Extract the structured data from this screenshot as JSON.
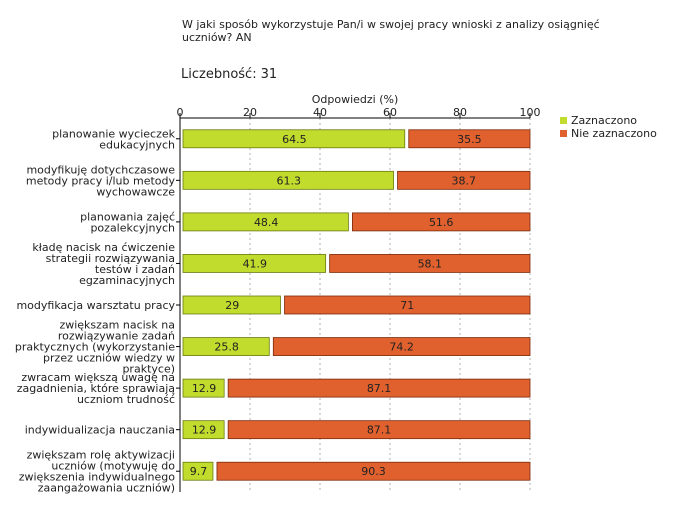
{
  "question": "W jaki sposób wykorzystuje Pan/i w swojej pracy wnioski z analizy osiągnięć uczniów? AN",
  "count_label": "Liczebność:",
  "count_value": "31",
  "colors": {
    "selected": "#c2dc2e",
    "not_selected": "#e0602e",
    "grid": "#b0b0b0",
    "axis": "#000000"
  },
  "chart_data": {
    "type": "bar",
    "orientation": "horizontal",
    "stacked": true,
    "title": "W jaki sposób wykorzystuje Pan/i w swojej pracy wnioski z analizy osiągnięć uczniów? AN",
    "xlabel": "Odpowiedzi (%)",
    "ylabel": "",
    "xlim": [
      0,
      100
    ],
    "ticks": [
      0,
      20,
      40,
      60,
      80,
      100
    ],
    "legend_position": "top-right",
    "categories": [
      [
        "planowanie wycieczek",
        "edukacyjnych"
      ],
      [
        "modyfikuję dotychczasowe",
        "metody pracy i/lub metody",
        "wychowawcze"
      ],
      [
        "planowania zajęć",
        "pozalekcyjnych"
      ],
      [
        "kładę nacisk na ćwiczenie",
        "strategii rozwiązywania",
        "testów i zadań",
        "egzaminacyjnych"
      ],
      [
        "modyfikacja warsztatu pracy"
      ],
      [
        "zwiększam nacisk na",
        "rozwiązywanie zadań",
        "praktycznych (wykorzystanie",
        "przez uczniów wiedzy w",
        "praktyce)"
      ],
      [
        "zwracam większą uwagę na",
        "zagadnienia, które sprawiają",
        "uczniom trudność"
      ],
      [
        "indywidualizacja nauczania"
      ],
      [
        "zwiększam rolę aktywizacji",
        "uczniów (motywuję do",
        "zwiększenia indywidualnego",
        "zaangażowania uczniów)"
      ]
    ],
    "series": [
      {
        "name": "Zaznaczono",
        "values": [
          64.5,
          61.3,
          48.4,
          41.9,
          29,
          25.8,
          12.9,
          12.9,
          9.7
        ]
      },
      {
        "name": "Nie zaznaczono",
        "values": [
          35.5,
          38.7,
          51.6,
          58.1,
          71,
          74.2,
          87.1,
          87.1,
          90.3
        ]
      }
    ],
    "value_labels": [
      [
        "64.5",
        "61.3",
        "48.4",
        "41.9",
        "29",
        "25.8",
        "12.9",
        "12.9",
        "9.7"
      ],
      [
        "35.5",
        "38.7",
        "51.6",
        "58.1",
        "71",
        "74.2",
        "87.1",
        "87.1",
        "90.3"
      ]
    ]
  }
}
